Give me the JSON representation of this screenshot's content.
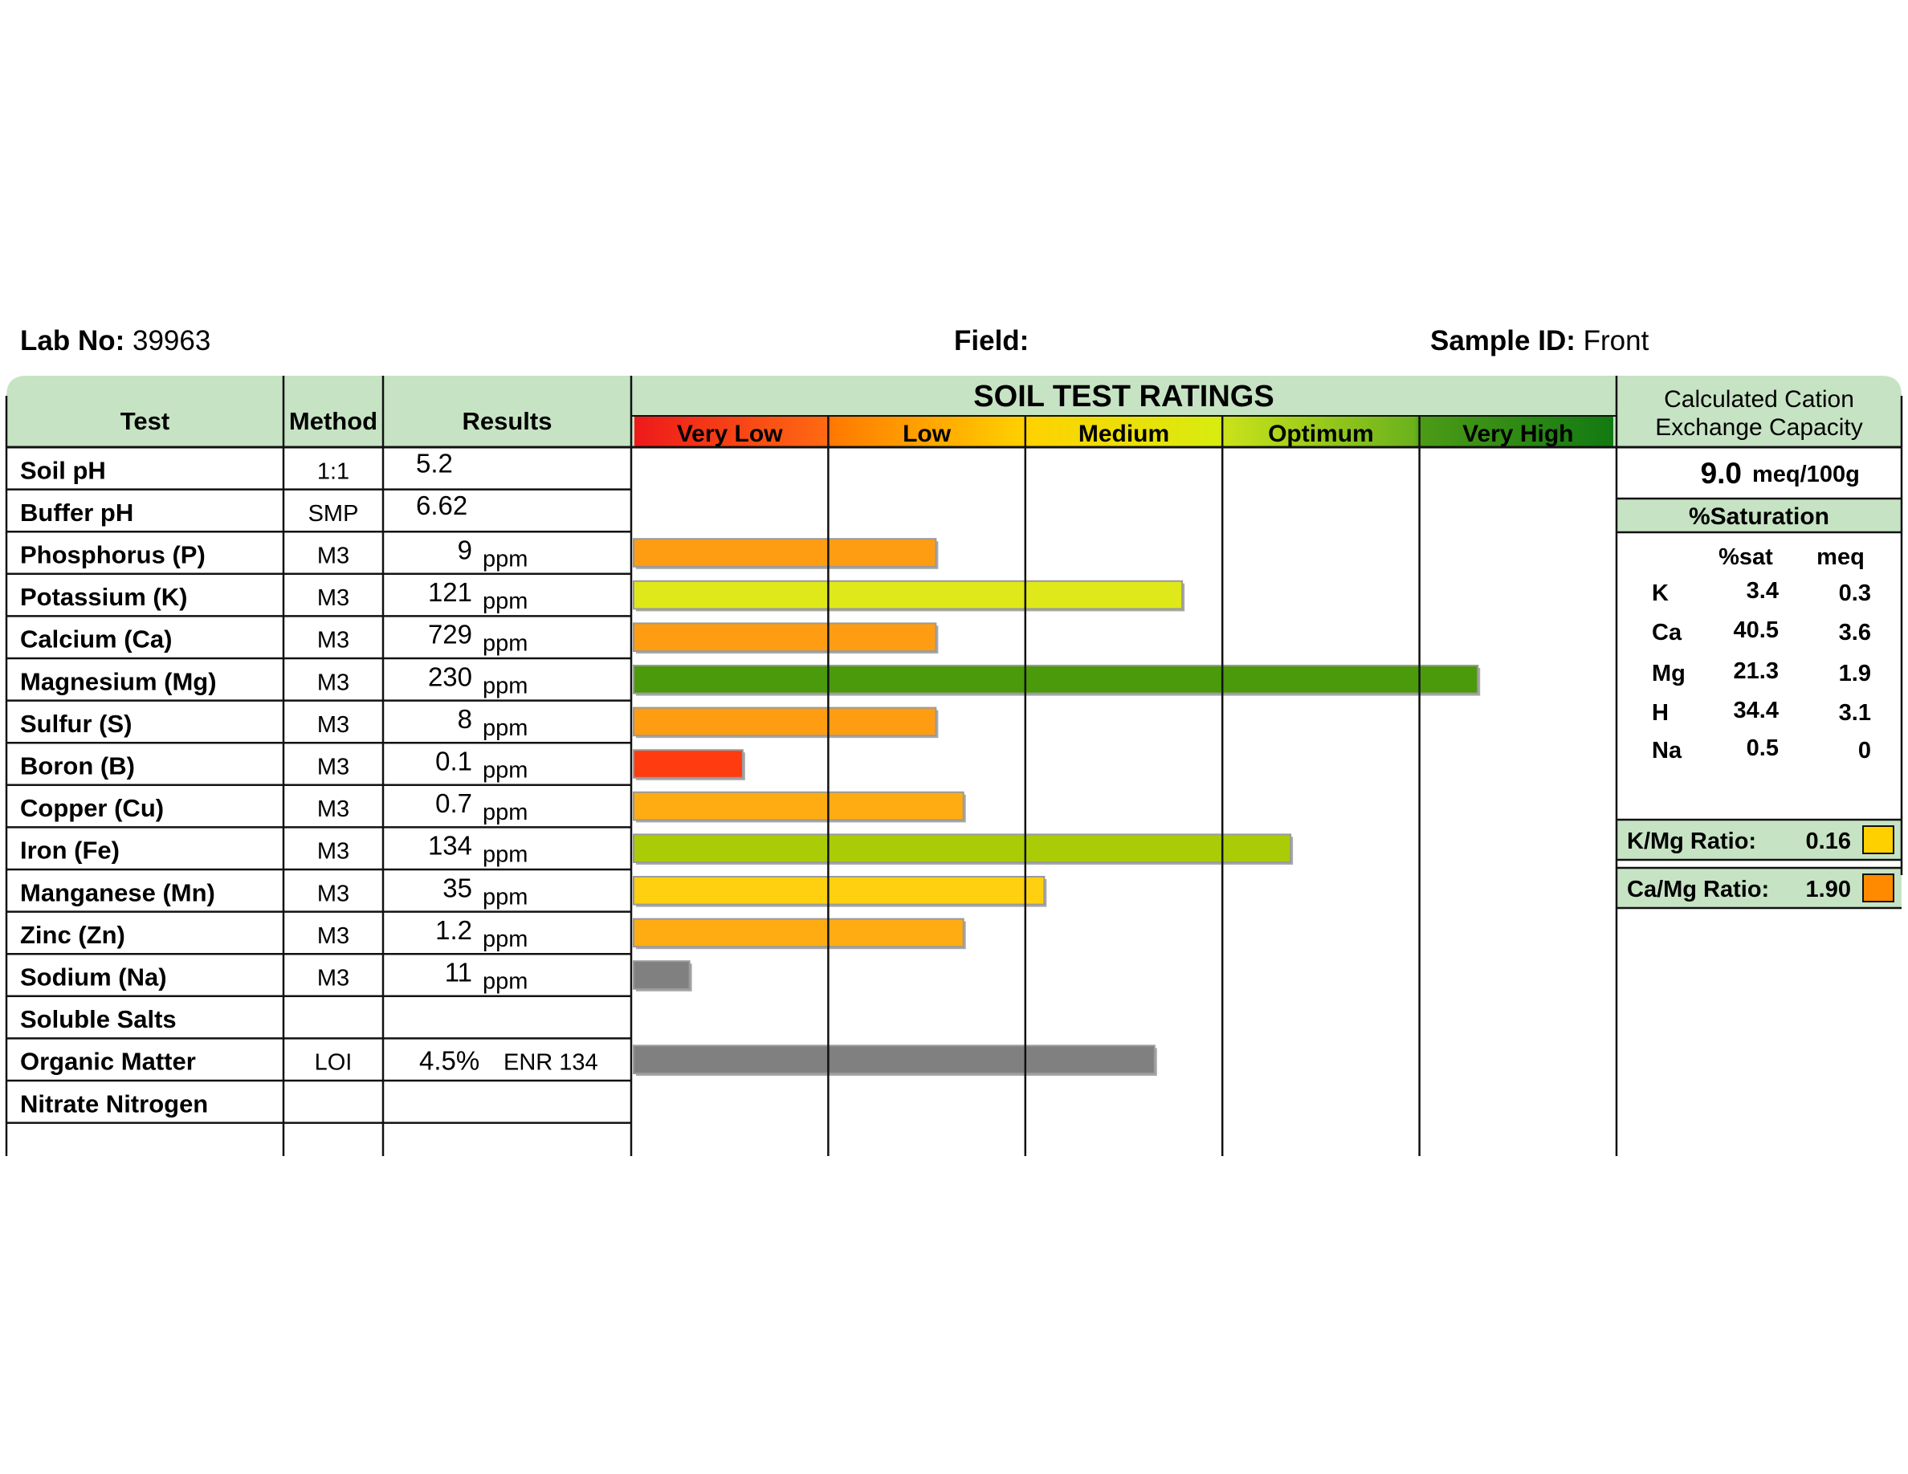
{
  "header": {
    "lab_label": "Lab No:",
    "lab_value": "39963",
    "field_label": "Field:",
    "field_value": "",
    "sample_label": "Sample ID:",
    "sample_value": "Front"
  },
  "table": {
    "col_test": "Test",
    "col_method": "Method",
    "col_results": "Results"
  },
  "ratings": {
    "title": "SOIL TEST RATINGS",
    "bands": [
      {
        "label": "Very Low",
        "color_from": "#ee1a1a",
        "color_to": "#ff6a12"
      },
      {
        "label": "Low",
        "color_from": "#ff7a00",
        "color_to": "#ffd000"
      },
      {
        "label": "Medium",
        "color_from": "#ffd200",
        "color_to": "#d8ec10"
      },
      {
        "label": "Optimum",
        "color_from": "#c9e21a",
        "color_to": "#6ab21c"
      },
      {
        "label": "Very High",
        "color_from": "#4c9b16",
        "color_to": "#137a12"
      }
    ]
  },
  "chart_data": {
    "type": "bar",
    "orientation": "horizontal",
    "title": "SOIL TEST RATINGS",
    "scale": "rating bands (0 = start of Very Low, 5 = end of Very High)",
    "xlim": [
      0,
      5
    ],
    "categories": [
      "Soil pH",
      "Buffer pH",
      "Phosphorus (P)",
      "Potassium (K)",
      "Calcium (Ca)",
      "Magnesium (Mg)",
      "Sulfur (S)",
      "Boron (B)",
      "Copper (Cu)",
      "Iron (Fe)",
      "Manganese (Mn)",
      "Zinc (Zn)",
      "Sodium (Na)",
      "Soluble Salts",
      "Organic Matter",
      "Nitrate Nitrogen"
    ],
    "rows": [
      {
        "test": "Soil pH",
        "method": "1:1",
        "result": "5.2",
        "unit": "",
        "extra": "",
        "rating": null,
        "color": null
      },
      {
        "test": "Buffer pH",
        "method": "SMP",
        "result": "6.62",
        "unit": "",
        "extra": "",
        "rating": null,
        "color": null
      },
      {
        "test": "Phosphorus (P)",
        "method": "M3",
        "result": "9",
        "unit": "ppm",
        "extra": "",
        "rating": 1.55,
        "color": "#ff9d12"
      },
      {
        "test": "Potassium (K)",
        "method": "M3",
        "result": "121",
        "unit": "ppm",
        "extra": "",
        "rating": 2.8,
        "color": "#dfe818"
      },
      {
        "test": "Calcium (Ca)",
        "method": "M3",
        "result": "729",
        "unit": "ppm",
        "extra": "",
        "rating": 1.55,
        "color": "#ff9d12"
      },
      {
        "test": "Magnesium (Mg)",
        "method": "M3",
        "result": "230",
        "unit": "ppm",
        "extra": "",
        "rating": 4.3,
        "color": "#4a9a0c"
      },
      {
        "test": "Sulfur (S)",
        "method": "M3",
        "result": "8",
        "unit": "ppm",
        "extra": "",
        "rating": 1.55,
        "color": "#ff9d12"
      },
      {
        "test": "Boron (B)",
        "method": "M3",
        "result": "0.1",
        "unit": "ppm",
        "extra": "",
        "rating": 0.57,
        "color": "#ff3b10"
      },
      {
        "test": "Copper (Cu)",
        "method": "M3",
        "result": "0.7",
        "unit": "ppm",
        "extra": "",
        "rating": 1.69,
        "color": "#ffac12"
      },
      {
        "test": "Iron (Fe)",
        "method": "M3",
        "result": "134",
        "unit": "ppm",
        "extra": "",
        "rating": 3.35,
        "color": "#a9cc06"
      },
      {
        "test": "Manganese (Mn)",
        "method": "M3",
        "result": "35",
        "unit": "ppm",
        "extra": "",
        "rating": 2.1,
        "color": "#ffd010"
      },
      {
        "test": "Zinc (Zn)",
        "method": "M3",
        "result": "1.2",
        "unit": "ppm",
        "extra": "",
        "rating": 1.69,
        "color": "#ffac12"
      },
      {
        "test": "Sodium (Na)",
        "method": "M3",
        "result": "11",
        "unit": "ppm",
        "extra": "",
        "rating": 0.3,
        "color": "#808080"
      },
      {
        "test": "Soluble Salts",
        "method": "",
        "result": "",
        "unit": "",
        "extra": "",
        "rating": null,
        "color": null
      },
      {
        "test": "Organic Matter",
        "method": "LOI",
        "result": "4.5%",
        "unit": "",
        "extra": "ENR 134",
        "rating": 2.66,
        "color": "#808080"
      },
      {
        "test": "Nitrate Nitrogen",
        "method": "",
        "result": "",
        "unit": "",
        "extra": "",
        "rating": null,
        "color": null
      }
    ]
  },
  "cec": {
    "title_line1": "Calculated Cation",
    "title_line2": "Exchange Capacity",
    "value": "9.0",
    "unit": "meq/100g"
  },
  "saturation": {
    "title": "%Saturation",
    "col_sat": "%sat",
    "col_meq": "meq",
    "rows": [
      {
        "el": "K",
        "sat": "3.4",
        "meq": "0.3"
      },
      {
        "el": "Ca",
        "sat": "40.5",
        "meq": "3.6"
      },
      {
        "el": "Mg",
        "sat": "21.3",
        "meq": "1.9"
      },
      {
        "el": "H",
        "sat": "34.4",
        "meq": "3.1"
      },
      {
        "el": "Na",
        "sat": "0.5",
        "meq": "0"
      }
    ]
  },
  "ratios": [
    {
      "label": "K/Mg Ratio:",
      "value": "0.16",
      "color": "#ffd000"
    },
    {
      "label": "Ca/Mg Ratio:",
      "value": "1.90",
      "color": "#ff8a00"
    }
  ]
}
